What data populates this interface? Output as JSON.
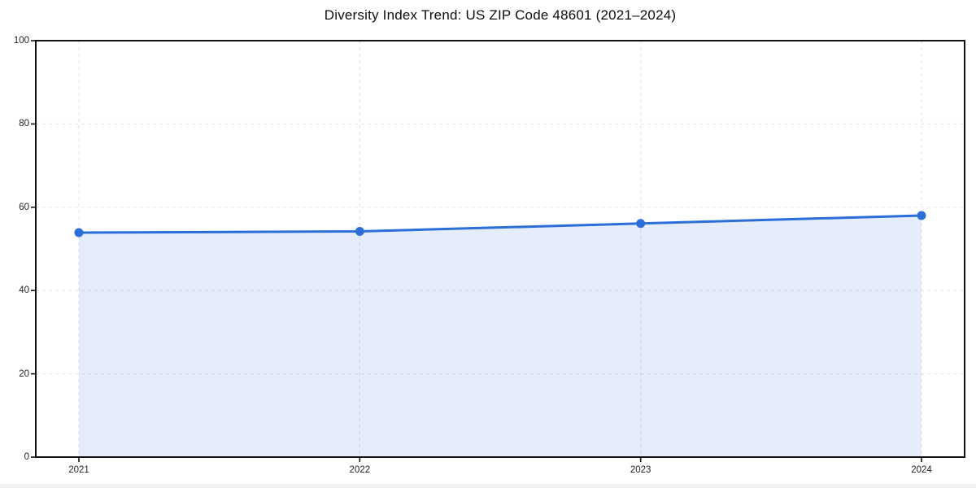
{
  "chart_data": {
    "type": "line",
    "title": "Diversity Index Trend: US ZIP Code 48601 (2021–2024)",
    "categories": [
      "2021",
      "2022",
      "2023",
      "2024"
    ],
    "series": [
      {
        "name": "Diversity Index",
        "values": [
          53.9,
          54.2,
          56.1,
          58.0
        ]
      }
    ],
    "xlabel": "",
    "ylabel": "",
    "ylim": [
      0,
      100
    ],
    "yticks": [
      0,
      20,
      40,
      60,
      80,
      100
    ],
    "grid": "dashed both axes",
    "legend_position": "none",
    "line_color": "#2b6ed8",
    "marker": "circle",
    "fill_under_line": true,
    "fill_color": "#2b6ed8",
    "fill_opacity": 0.12,
    "frame_color": "#111111",
    "gridline_color": "#e2e2e2",
    "background_color": "#ffffff"
  }
}
